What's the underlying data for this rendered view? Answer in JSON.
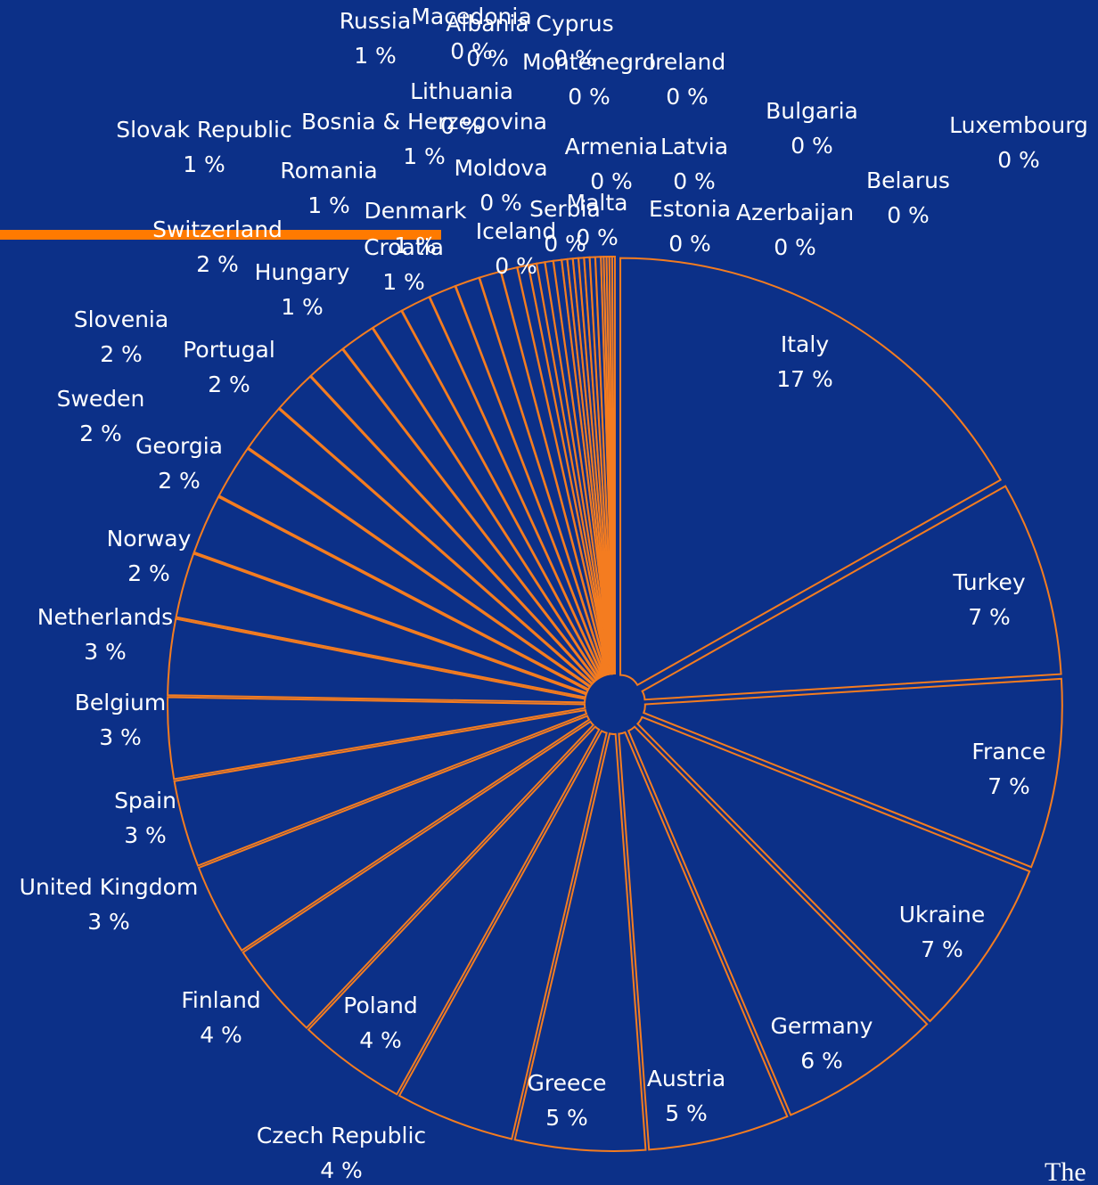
{
  "chart_data": {
    "type": "pie",
    "categories": [
      "Italy",
      "Turkey",
      "France",
      "Ukraine",
      "Germany",
      "Austria",
      "Greece",
      "Czech Republic",
      "Poland",
      "Finland",
      "United Kingdom",
      "Spain",
      "Belgium",
      "Netherlands",
      "Norway",
      "Georgia",
      "Sweden",
      "Portugal",
      "Slovenia",
      "Switzerland",
      "Hungary",
      "Slovak Republic",
      "Croatia",
      "Denmark",
      "Romania",
      "Bosnia & Herzegovina",
      "Russia",
      "Lithuania",
      "Iceland",
      "Moldova",
      "Macedonia",
      "Albania",
      "Serbia",
      "Cyprus",
      "Malta",
      "Montenegro",
      "Armenia",
      "Ireland",
      "Latvia",
      "Estonia",
      "Bulgaria",
      "Azerbaijan",
      "Belarus",
      "Luxembourg"
    ],
    "values": [
      16.8,
      7.2,
      7.0,
      6.6,
      6.0,
      5.2,
      4.8,
      4.4,
      4.0,
      3.6,
      3.4,
      3.2,
      3.0,
      2.8,
      2.4,
      2.2,
      2.0,
      1.8,
      1.6,
      1.5,
      1.3,
      1.2,
      1.1,
      1.0,
      0.9,
      0.8,
      0.6,
      0.4,
      0.3,
      0.3,
      0.3,
      0.3,
      0.2,
      0.2,
      0.2,
      0.2,
      0.2,
      0.2,
      0.2,
      0.1,
      0.1,
      0.1,
      0.1,
      0.1
    ],
    "value_labels": [
      "17 %",
      "7 %",
      "7 %",
      "7 %",
      "6 %",
      "5 %",
      "5 %",
      "4 %",
      "4 %",
      "4 %",
      "3 %",
      "3 %",
      "3 %",
      "3 %",
      "2 %",
      "2 %",
      "2 %",
      "2 %",
      "2 %",
      "2 %",
      "1 %",
      "1 %",
      "1 %",
      "1 %",
      "1 %",
      "1 %",
      "1 %",
      "0 %",
      "0 %",
      "0 %",
      "0 %",
      "0 %",
      "0 %",
      "0 %",
      "0 %",
      "0 %",
      "0 %",
      "0 %",
      "0 %",
      "0 %",
      "0 %",
      "0 %",
      "0 %",
      "0 %"
    ],
    "color": "#0c3088",
    "edge_color": "#f47c20"
  },
  "footer_text": "The"
}
